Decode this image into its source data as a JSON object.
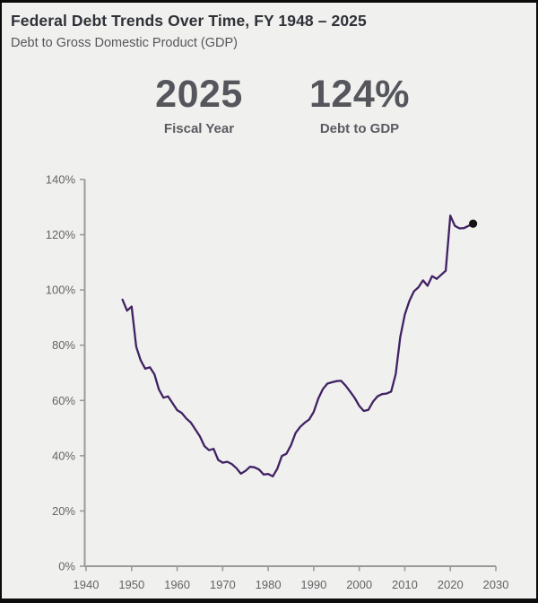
{
  "header": {
    "title": "Federal Debt Trends Over Time, FY 1948 – 2025",
    "subtitle": "Debt to Gross Domestic Product (GDP)"
  },
  "stats": [
    {
      "value": "2025",
      "label": "Fiscal Year"
    },
    {
      "value": "124%",
      "label": "Debt to GDP"
    }
  ],
  "colors": {
    "background": "#f0f0ee",
    "border": "#0c0c0c",
    "title": "#2f3138",
    "subtitle": "#55565b",
    "stat_value": "#55565c",
    "stat_label": "#5a5b60",
    "axis": "#9a9a9a",
    "tick_label": "#636466",
    "line": "#402163",
    "endpoint": "#141414"
  },
  "chart_data": {
    "type": "line",
    "title": "Federal Debt Trends Over Time, FY 1948 – 2025",
    "subtitle": "Debt to Gross Domestic Product (GDP)",
    "xlabel": "",
    "ylabel": "",
    "xlim": [
      1940,
      2030
    ],
    "ylim": [
      0,
      140
    ],
    "x_ticks": [
      1940,
      1950,
      1960,
      1970,
      1980,
      1990,
      2000,
      2010,
      2020,
      2030
    ],
    "y_ticks": [
      0,
      20,
      40,
      60,
      80,
      100,
      120,
      140
    ],
    "y_tick_suffix": "%",
    "grid": false,
    "legend": "none",
    "series": [
      {
        "name": "Debt to GDP",
        "x": [
          1948,
          1949,
          1950,
          1951,
          1952,
          1953,
          1954,
          1955,
          1956,
          1957,
          1958,
          1959,
          1960,
          1961,
          1962,
          1963,
          1964,
          1965,
          1966,
          1967,
          1968,
          1969,
          1970,
          1971,
          1972,
          1973,
          1974,
          1975,
          1976,
          1977,
          1978,
          1979,
          1980,
          1981,
          1982,
          1983,
          1984,
          1985,
          1986,
          1987,
          1988,
          1989,
          1990,
          1991,
          1992,
          1993,
          1994,
          1995,
          1996,
          1997,
          1998,
          1999,
          2000,
          2001,
          2002,
          2003,
          2004,
          2005,
          2006,
          2007,
          2008,
          2009,
          2010,
          2011,
          2012,
          2013,
          2014,
          2015,
          2016,
          2017,
          2018,
          2019,
          2020,
          2021,
          2022,
          2023,
          2024,
          2025
        ],
        "values": [
          96.5,
          92.5,
          94,
          79.5,
          74.5,
          71.5,
          72,
          69.5,
          64,
          61,
          61.5,
          59,
          56.5,
          55.5,
          53.5,
          52,
          49.5,
          47,
          43.5,
          42,
          42.5,
          38.5,
          37.5,
          37.8,
          37,
          35.5,
          33.5,
          34.5,
          36,
          35.8,
          35,
          33.2,
          33.4,
          32.5,
          35.3,
          39.9,
          40.7,
          43.8,
          48.2,
          50.4,
          51.9,
          53.1,
          55.9,
          60.7,
          64.1,
          66.1,
          66.6,
          67,
          67.1,
          65.4,
          63.2,
          60.9,
          58,
          56.2,
          56.6,
          59.5,
          61.5,
          62.3,
          62.5,
          63.2,
          69.5,
          83,
          91,
          96,
          99.5,
          101,
          103.5,
          101.5,
          105,
          104,
          105.5,
          107,
          126.9,
          123.2,
          122.3,
          122.4,
          123.2,
          124
        ]
      }
    ],
    "endpoint": {
      "x": 2025,
      "value": 124
    }
  }
}
